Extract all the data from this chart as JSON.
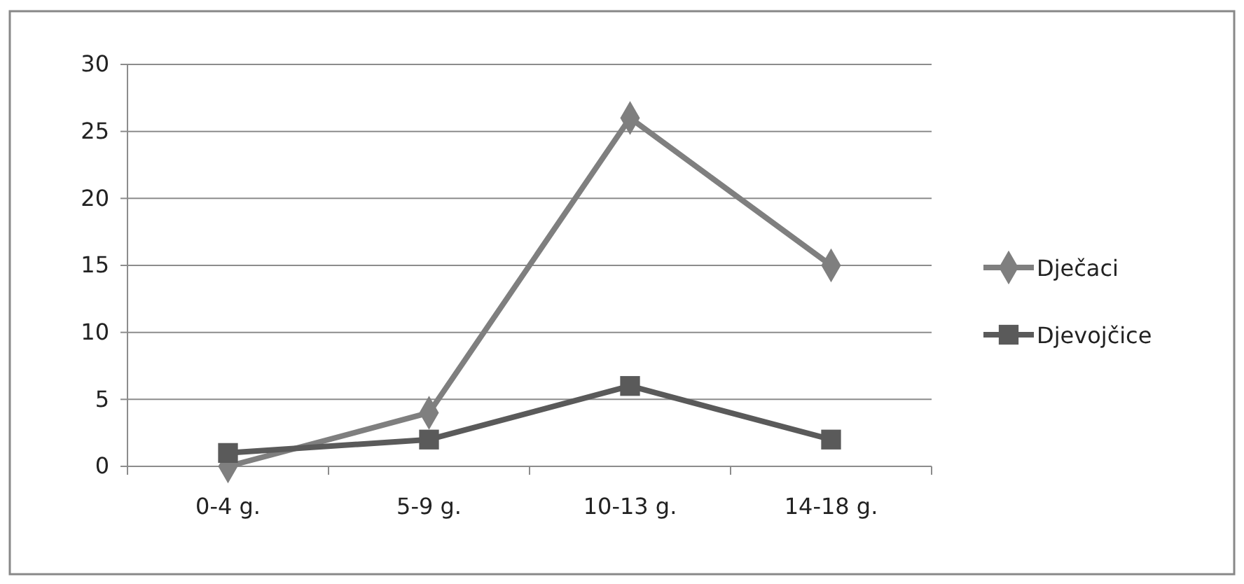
{
  "chart_data": {
    "type": "line",
    "categories": [
      "0-4 g.",
      "5-9 g.",
      "10-13 g.",
      "14-18 g."
    ],
    "series": [
      {
        "name": "Dječaci",
        "color": "#7f7f7f",
        "marker": "diamond",
        "values": [
          0,
          4,
          26,
          15
        ]
      },
      {
        "name": "Djevojčice",
        "color": "#5a5a5a",
        "marker": "square",
        "values": [
          1,
          2,
          6,
          2
        ]
      }
    ],
    "ylim": [
      0,
      30
    ],
    "yticks": [
      0,
      5,
      10,
      15,
      20,
      25,
      30
    ],
    "grid": "y",
    "legend": "right"
  }
}
